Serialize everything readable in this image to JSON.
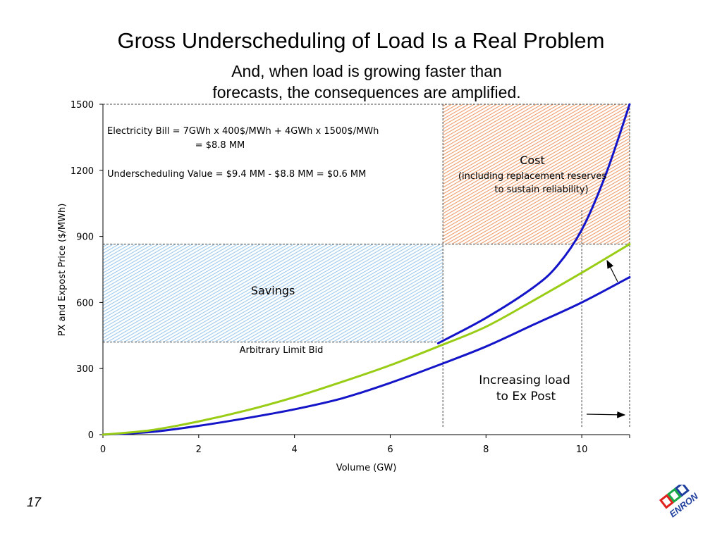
{
  "slide": {
    "title": "Gross Underscheduling of Load Is a Real Problem",
    "subtitle_line1": "And, when load is growing faster than",
    "subtitle_line2": "forecasts, the consequences are amplified.",
    "page_number": "17",
    "logo_text": "ENRON",
    "colors": {
      "logo_red": "#e0201b",
      "logo_green": "#18a845",
      "logo_blue": "#1f3f9e"
    }
  },
  "chart_data": {
    "type": "line",
    "xlabel": "Volume (GW)",
    "ylabel": "PX and Expost Price ($/MWh)",
    "xlim": [
      0,
      11
    ],
    "ylim": [
      0,
      1500
    ],
    "x_ticks": [
      0,
      2,
      4,
      6,
      8,
      10
    ],
    "y_ticks": [
      0,
      300,
      600,
      900,
      1200,
      1500
    ],
    "grid": false,
    "series": [
      {
        "color": "#1414c8",
        "x": [
          0,
          1,
          2,
          3,
          4,
          5,
          6,
          7,
          8,
          9,
          10,
          11
        ],
        "y": [
          0,
          12,
          40,
          75,
          115,
          165,
          235,
          315,
          400,
          500,
          600,
          715
        ]
      },
      {
        "color": "#99cc14",
        "x": [
          0,
          1,
          2,
          3,
          4,
          5,
          6,
          7,
          8,
          9,
          10,
          11
        ],
        "y": [
          0,
          20,
          60,
          110,
          170,
          240,
          315,
          400,
          490,
          610,
          735,
          865
        ]
      },
      {
        "color": "#1414c8",
        "x": [
          7,
          8,
          9,
          9.5,
          10,
          10.5,
          11
        ],
        "y": [
          415,
          530,
          670,
          770,
          930,
          1180,
          1500
        ]
      }
    ],
    "regions": [
      {
        "name": "savings",
        "label": "Savings",
        "x": [
          0,
          7.1
        ],
        "y": [
          420,
          865
        ],
        "color": "#9cc8ee"
      },
      {
        "name": "cost",
        "label": "Cost",
        "label_note": "(including replacement reserves\nto sustain reliability)",
        "x": [
          7.1,
          11
        ],
        "y": [
          865,
          1500
        ],
        "color": "#ef9c6a"
      }
    ],
    "reference_lines": {
      "horizontal": [
        1500,
        865,
        420
      ],
      "vertical": [
        7.1,
        10,
        11
      ]
    },
    "annotations": [
      {
        "name": "electricity-bill",
        "text": "Electricity Bill = 7GWh x 400$/MWh + 4GWh x 1500$/MWh\n= $8.8 MM"
      },
      {
        "name": "underscheduling-value",
        "text": "Underscheduling Value = $9.4 MM - $8.8 MM = $0.6 MM"
      },
      {
        "name": "arbitrary-limit-bid",
        "text": "Arbitrary Limit Bid"
      },
      {
        "name": "increasing-load",
        "text": "Increasing load\nto Ex Post"
      }
    ]
  }
}
